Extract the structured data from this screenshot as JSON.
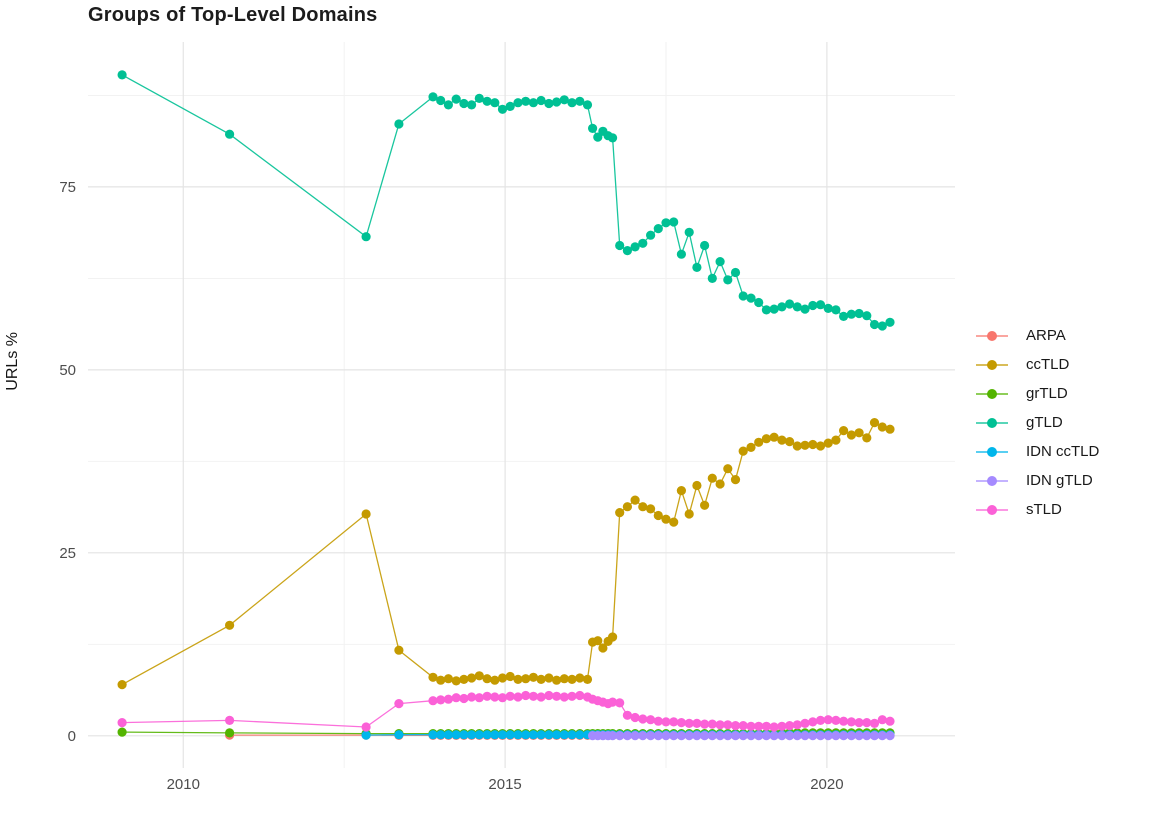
{
  "chart_data": {
    "type": "line",
    "title": "Groups of Top-Level Domains",
    "xlabel": "",
    "ylabel": "URLs %",
    "legend_position": "right",
    "grid": true,
    "xlim": [
      2008.52,
      2021.99
    ],
    "ylim": [
      -4.4,
      94.8
    ],
    "x_tick_values": [
      2010,
      2015,
      2020
    ],
    "x_tick_labels": [
      "2010",
      "2015",
      "2020"
    ],
    "x_minor_ticks": [
      2012.5,
      2017.5
    ],
    "y_tick_values": [
      0,
      25,
      50,
      75
    ],
    "y_tick_labels": [
      "0",
      "25",
      "50",
      "75"
    ],
    "y_minor_ticks": [
      12.5,
      37.5,
      62.5,
      87.5
    ],
    "x": [
      2009.05,
      2010.72,
      2012.84,
      2013.35,
      2013.88,
      2014.0,
      2014.12,
      2014.24,
      2014.36,
      2014.48,
      2014.6,
      2014.72,
      2014.84,
      2014.96,
      2015.08,
      2015.2,
      2015.32,
      2015.44,
      2015.56,
      2015.68,
      2015.8,
      2015.92,
      2016.04,
      2016.16,
      2016.28,
      2016.36,
      2016.44,
      2016.52,
      2016.6,
      2016.67,
      2016.78,
      2016.9,
      2017.02,
      2017.14,
      2017.26,
      2017.38,
      2017.5,
      2017.62,
      2017.74,
      2017.86,
      2017.98,
      2018.1,
      2018.22,
      2018.34,
      2018.46,
      2018.58,
      2018.7,
      2018.82,
      2018.94,
      2019.06,
      2019.18,
      2019.3,
      2019.42,
      2019.54,
      2019.66,
      2019.78,
      2019.9,
      2020.02,
      2020.14,
      2020.26,
      2020.38,
      2020.5,
      2020.62,
      2020.74,
      2020.86,
      2020.98
    ],
    "series": [
      {
        "name": "ARPA",
        "color": "#F8766D",
        "values": [
          null,
          0.1,
          0.1,
          0.05,
          0.05,
          0.05,
          0.05,
          0.05,
          0.05,
          0.05,
          0.05,
          0.05,
          0.05,
          0.05,
          0.05,
          0.05,
          0.05,
          0.05,
          0.05,
          0.05,
          0.05,
          0.05,
          0.05,
          0.05,
          0.05,
          0.05,
          0.05,
          0.05,
          0.05,
          0.05,
          0.05,
          0.05,
          0.05,
          0.05,
          0.05,
          0.05,
          0.05,
          0.05,
          0.05,
          0.05,
          0.05,
          0.05,
          0.05,
          0.05,
          0.05,
          0.05,
          0.05,
          0.05,
          0.05,
          0.05,
          0.05,
          0.05,
          0.05,
          0.05,
          0.05,
          0.05,
          0.05,
          0.05,
          0.05,
          0.05,
          0.05,
          0.05,
          0.05,
          0.05,
          0.05,
          0.05
        ]
      },
      {
        "name": "ccTLD",
        "color": "#C49A00",
        "values": [
          7.0,
          15.1,
          30.3,
          11.7,
          8.0,
          7.6,
          7.8,
          7.5,
          7.7,
          7.9,
          8.2,
          7.8,
          7.6,
          7.9,
          8.1,
          7.7,
          7.8,
          8.0,
          7.7,
          7.9,
          7.6,
          7.8,
          7.7,
          7.9,
          7.7,
          12.8,
          13.0,
          12.0,
          12.9,
          13.5,
          30.5,
          31.3,
          32.2,
          31.3,
          31.0,
          30.1,
          29.6,
          29.2,
          33.5,
          30.3,
          34.2,
          31.5,
          35.2,
          34.4,
          36.5,
          35.0,
          38.9,
          39.4,
          40.1,
          40.6,
          40.8,
          40.4,
          40.2,
          39.6,
          39.7,
          39.8,
          39.6,
          40.0,
          40.4,
          41.7,
          41.1,
          41.4,
          40.7,
          42.8,
          42.2,
          41.9
        ]
      },
      {
        "name": "grTLD",
        "color": "#53B400",
        "values": [
          0.5,
          0.4,
          0.3,
          0.3,
          0.3,
          0.3,
          0.3,
          0.3,
          0.3,
          0.3,
          0.3,
          0.3,
          0.3,
          0.3,
          0.3,
          0.3,
          0.3,
          0.3,
          0.3,
          0.3,
          0.3,
          0.3,
          0.3,
          0.3,
          0.3,
          0.3,
          0.3,
          0.3,
          0.3,
          0.3,
          0.3,
          0.3,
          0.3,
          0.3,
          0.3,
          0.3,
          0.3,
          0.3,
          0.3,
          0.3,
          0.3,
          0.3,
          0.3,
          0.3,
          0.3,
          0.3,
          0.3,
          0.3,
          0.3,
          0.3,
          0.4,
          0.4,
          0.4,
          0.4,
          0.4,
          0.4,
          0.4,
          0.4,
          0.4,
          0.4,
          0.4,
          0.4,
          0.4,
          0.4,
          0.4,
          0.4
        ]
      },
      {
        "name": "gTLD",
        "color": "#00C094",
        "values": [
          90.3,
          82.2,
          68.2,
          83.6,
          87.3,
          86.8,
          86.2,
          87.0,
          86.4,
          86.2,
          87.1,
          86.7,
          86.5,
          85.6,
          86.0,
          86.5,
          86.7,
          86.5,
          86.8,
          86.4,
          86.6,
          86.9,
          86.5,
          86.7,
          86.2,
          83.0,
          81.8,
          82.6,
          82.0,
          81.7,
          67.0,
          66.3,
          66.8,
          67.3,
          68.4,
          69.3,
          70.1,
          70.2,
          65.8,
          68.8,
          64.0,
          67.0,
          62.5,
          64.8,
          62.3,
          63.3,
          60.1,
          59.8,
          59.2,
          58.2,
          58.3,
          58.6,
          59.0,
          58.6,
          58.3,
          58.8,
          58.9,
          58.4,
          58.2,
          57.3,
          57.6,
          57.7,
          57.4,
          56.2,
          56.0,
          56.5
        ]
      },
      {
        "name": "IDN ccTLD",
        "color": "#00B6EB",
        "values": [
          null,
          null,
          0.1,
          0.15,
          0.15,
          0.15,
          0.15,
          0.15,
          0.15,
          0.15,
          0.15,
          0.15,
          0.15,
          0.15,
          0.15,
          0.15,
          0.15,
          0.15,
          0.15,
          0.15,
          0.15,
          0.15,
          0.15,
          0.15,
          0.15,
          0.15,
          0.15,
          0.15,
          0.15,
          0.15,
          0.12,
          0.12,
          0.12,
          0.12,
          0.12,
          0.12,
          0.12,
          0.12,
          0.12,
          0.12,
          0.12,
          0.12,
          0.12,
          0.12,
          0.12,
          0.12,
          0.12,
          0.12,
          0.12,
          0.12,
          0.12,
          0.12,
          0.12,
          0.12,
          0.12,
          0.12,
          0.12,
          0.12,
          0.12,
          0.12,
          0.12,
          0.12,
          0.12,
          0.12,
          0.12,
          0.12
        ]
      },
      {
        "name": "IDN gTLD",
        "color": "#A58AFF",
        "values": [
          null,
          null,
          null,
          null,
          null,
          null,
          null,
          null,
          null,
          null,
          null,
          null,
          null,
          null,
          null,
          null,
          null,
          null,
          null,
          null,
          null,
          null,
          null,
          null,
          null,
          0.03,
          0.03,
          0.03,
          0.03,
          0.03,
          0.03,
          0.03,
          0.03,
          0.03,
          0.03,
          0.03,
          0.03,
          0.03,
          0.03,
          0.03,
          0.03,
          0.03,
          0.03,
          0.03,
          0.03,
          0.03,
          0.03,
          0.03,
          0.03,
          0.03,
          0.03,
          0.03,
          0.03,
          0.03,
          0.03,
          0.03,
          0.03,
          0.03,
          0.03,
          0.03,
          0.03,
          0.03,
          0.03,
          0.03,
          0.03,
          0.03
        ]
      },
      {
        "name": "sTLD",
        "color": "#FB61D7",
        "values": [
          1.8,
          2.1,
          1.2,
          4.4,
          4.8,
          4.9,
          5.0,
          5.2,
          5.1,
          5.3,
          5.2,
          5.4,
          5.3,
          5.2,
          5.4,
          5.3,
          5.5,
          5.4,
          5.3,
          5.5,
          5.4,
          5.3,
          5.4,
          5.5,
          5.3,
          5.0,
          4.8,
          4.6,
          4.4,
          4.6,
          4.5,
          2.8,
          2.5,
          2.3,
          2.2,
          2.0,
          1.9,
          1.9,
          1.8,
          1.7,
          1.7,
          1.6,
          1.6,
          1.5,
          1.5,
          1.4,
          1.4,
          1.3,
          1.3,
          1.3,
          1.2,
          1.3,
          1.4,
          1.5,
          1.7,
          1.9,
          2.1,
          2.2,
          2.1,
          2.0,
          1.9,
          1.8,
          1.8,
          1.7,
          2.2,
          2.0
        ]
      }
    ]
  }
}
